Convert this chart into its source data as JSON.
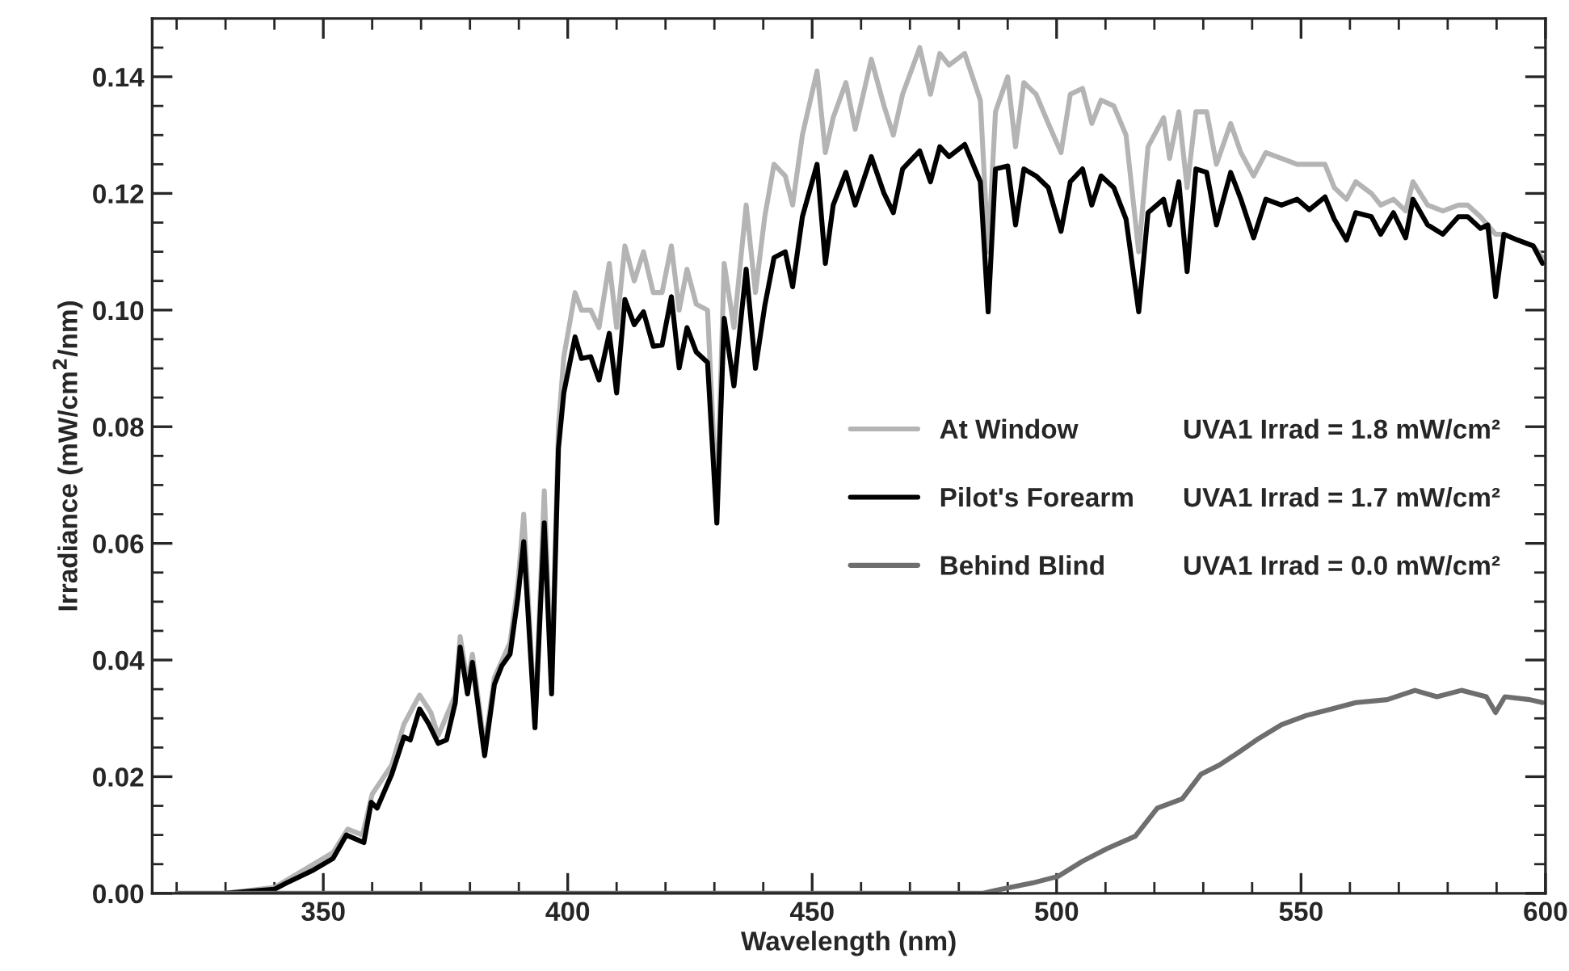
{
  "chart_data": {
    "type": "line",
    "xlabel": "Wavelength (nm)",
    "ylabel": "Irradiance (mW/cm$^{2}$/nm)",
    "xlim": [
      315,
      600
    ],
    "ylim": [
      0,
      0.15
    ],
    "xticks": [
      {
        "value": 320,
        "label": null
      },
      {
        "value": 330,
        "label": null
      },
      {
        "value": 340,
        "label": null
      },
      350,
      {
        "value": 360,
        "label": null
      },
      {
        "value": 370,
        "label": null
      },
      {
        "value": 380,
        "label": null
      },
      {
        "value": 390,
        "label": null
      },
      400,
      {
        "value": 410,
        "label": null
      },
      {
        "value": 420,
        "label": null
      },
      {
        "value": 430,
        "label": null
      },
      {
        "value": 440,
        "label": null
      },
      450,
      {
        "value": 460,
        "label": null
      },
      {
        "value": 470,
        "label": null
      },
      {
        "value": 480,
        "label": null
      },
      {
        "value": 490,
        "label": null
      },
      500,
      {
        "value": 510,
        "label": null
      },
      {
        "value": 520,
        "label": null
      },
      {
        "value": 530,
        "label": null
      },
      {
        "value": 540,
        "label": null
      },
      550,
      {
        "value": 560,
        "label": null
      },
      {
        "value": 570,
        "label": null
      },
      {
        "value": 580,
        "label": null
      },
      {
        "value": 590,
        "label": null
      },
      600
    ],
    "yticks": [
      {
        "value": 0,
        "label": "0.00"
      },
      {
        "value": 0.005,
        "label": null
      },
      {
        "value": 0.01,
        "label": null
      },
      {
        "value": 0.015,
        "label": null
      },
      {
        "value": 0.02,
        "label": "0.02"
      },
      {
        "value": 0.025,
        "label": null
      },
      {
        "value": 0.03,
        "label": null
      },
      {
        "value": 0.035,
        "label": null
      },
      {
        "value": 0.04,
        "label": "0.04"
      },
      {
        "value": 0.045,
        "label": null
      },
      {
        "value": 0.05,
        "label": null
      },
      {
        "value": 0.055,
        "label": null
      },
      {
        "value": 0.06,
        "label": "0.06"
      },
      {
        "value": 0.065,
        "label": null
      },
      {
        "value": 0.07,
        "label": null
      },
      {
        "value": 0.075,
        "label": null
      },
      {
        "value": 0.08,
        "label": "0.08"
      },
      {
        "value": 0.085,
        "label": null
      },
      {
        "value": 0.09,
        "label": null
      },
      {
        "value": 0.095,
        "label": null
      },
      {
        "value": 0.1,
        "label": "0.10"
      },
      {
        "value": 0.105,
        "label": null
      },
      {
        "value": 0.11,
        "label": null
      },
      {
        "value": 0.115,
        "label": null
      },
      {
        "value": 0.12,
        "label": "0.12"
      },
      {
        "value": 0.125,
        "label": null
      },
      {
        "value": 0.13,
        "label": null
      },
      {
        "value": 0.135,
        "label": null
      },
      {
        "value": 0.14,
        "label": "0.14"
      },
      {
        "value": 0.145,
        "label": null
      }
    ],
    "grid": false,
    "legend": "right",
    "line_style": "solid",
    "marker": "none",
    "annotations": [
      "UVA1 Irrad = 1.8 mW/cm²",
      "UVA1 Irrad = 1.7 mW/cm²",
      "UVA1 Irrad = 0.0 mW/cm²"
    ],
    "series": [
      {
        "name": "At Window",
        "color": "#b4b4b4",
        "x": [
          330,
          340,
          352,
          355,
          358,
          360,
          364,
          366.5,
          369.7,
          372,
          373.5,
          377,
          378,
          379.5,
          380.5,
          383,
          385,
          388.2,
          389.8,
          391,
          393.3,
          395.2,
          396.7,
          398.1,
          399.2,
          401.5,
          402.8,
          404.7,
          406.4,
          408.5,
          410,
          411.7,
          413.6,
          415.5,
          417.5,
          419.3,
          421.2,
          422.8,
          424.4,
          426.3,
          428.6,
          430.5,
          432,
          434,
          436.5,
          438.4,
          440.3,
          442.2,
          444.5,
          446,
          448,
          451,
          452.7,
          454.3,
          456.9,
          458.8,
          462.1,
          464.7,
          466.6,
          468.5,
          472,
          474.2,
          476.1,
          478,
          481.2,
          484.4,
          486,
          487.5,
          490,
          491.6,
          493.3,
          495.8,
          498.3,
          500.9,
          502.8,
          505.3,
          507.2,
          509.1,
          511.7,
          514.2,
          516.8,
          518.7,
          521.9,
          523.1,
          525,
          526.7,
          528.5,
          530.7,
          532.7,
          535.6,
          537.7,
          540.3,
          542.8,
          546,
          549.2,
          551.7,
          554.9,
          556.8,
          559.3,
          561.2,
          564.4,
          566.3,
          568.9,
          571.4,
          572.9,
          575.9,
          579,
          582.2,
          584.1,
          586.7,
          589.8,
          591.5,
          594.3,
          597.5,
          599.4
        ],
        "values": [
          0,
          0.001,
          0.007,
          0.011,
          0.01,
          0.017,
          0.022,
          0.029,
          0.034,
          0.031,
          0.027,
          0.034,
          0.044,
          0.036,
          0.041,
          0.025,
          0.037,
          0.043,
          0.053,
          0.065,
          0.029,
          0.069,
          0.036,
          0.08,
          0.092,
          0.103,
          0.1,
          0.1,
          0.097,
          0.108,
          0.097,
          0.111,
          0.105,
          0.11,
          0.103,
          0.103,
          0.111,
          0.1,
          0.107,
          0.101,
          0.1,
          0.066,
          0.108,
          0.097,
          0.118,
          0.103,
          0.116,
          0.125,
          0.123,
          0.118,
          0.13,
          0.141,
          0.127,
          0.133,
          0.139,
          0.131,
          0.143,
          0.135,
          0.13,
          0.137,
          0.145,
          0.137,
          0.144,
          0.142,
          0.144,
          0.136,
          0.11,
          0.134,
          0.14,
          0.128,
          0.139,
          0.137,
          0.132,
          0.127,
          0.137,
          0.138,
          0.132,
          0.136,
          0.135,
          0.13,
          0.11,
          0.128,
          0.133,
          0.126,
          0.134,
          0.121,
          0.134,
          0.134,
          0.125,
          0.132,
          0.127,
          0.123,
          0.127,
          0.126,
          0.125,
          0.125,
          0.125,
          0.121,
          0.119,
          0.122,
          0.12,
          0.118,
          0.119,
          0.117,
          0.122,
          0.118,
          0.117,
          0.118,
          0.118,
          0.116,
          0.113,
          0.113,
          0.112,
          0.111,
          0.109
        ]
      },
      {
        "name": "Pilot's Forearm",
        "color": "#000000",
        "x": [
          330,
          340,
          343,
          348,
          352,
          354.7,
          358.3,
          359.8,
          361,
          364,
          366.5,
          367.8,
          369.7,
          371.6,
          373.5,
          375.2,
          377,
          378,
          379.5,
          380.5,
          383,
          385,
          386.5,
          388.2,
          389.8,
          391,
          393.3,
          395.2,
          396.7,
          398.1,
          399.2,
          401.5,
          402.8,
          404.7,
          406.4,
          408.5,
          410,
          411.7,
          413.6,
          415.5,
          417.5,
          419.3,
          421.2,
          422.8,
          424.4,
          426.3,
          428.6,
          430.5,
          432,
          434,
          436.5,
          438.4,
          440.3,
          442.2,
          444.5,
          446,
          448,
          451,
          452.7,
          454.3,
          456.9,
          458.8,
          462.1,
          464.7,
          466.6,
          468.5,
          472,
          474.2,
          476.1,
          478,
          481.2,
          484.4,
          486,
          487.5,
          490,
          491.6,
          493.3,
          495.8,
          498.3,
          500.9,
          502.8,
          505.3,
          507.2,
          509.1,
          511.7,
          514.2,
          516.8,
          518.7,
          521.9,
          523.1,
          525,
          526.7,
          528.5,
          530.7,
          532.7,
          535.6,
          537.7,
          540.3,
          542.8,
          546,
          549.2,
          551.7,
          554.9,
          556.8,
          559.3,
          561.2,
          564.4,
          566.3,
          568.9,
          571.4,
          572.9,
          575.9,
          579,
          582.2,
          584.1,
          586.7,
          588.2,
          589.8,
          591.5,
          594.3,
          597.5,
          599.4
        ],
        "values": [
          0,
          0.0007,
          0.002,
          0.004,
          0.006,
          0.01,
          0.0087,
          0.0156,
          0.0146,
          0.0204,
          0.0268,
          0.0263,
          0.0316,
          0.029,
          0.0257,
          0.0263,
          0.0327,
          0.0422,
          0.0342,
          0.0396,
          0.0236,
          0.0358,
          0.039,
          0.041,
          0.0507,
          0.0603,
          0.0284,
          0.0635,
          0.0342,
          0.0763,
          0.0858,
          0.0954,
          0.0917,
          0.092,
          0.088,
          0.096,
          0.0858,
          0.1018,
          0.0975,
          0.0997,
          0.0938,
          0.094,
          0.1023,
          0.0901,
          0.097,
          0.0928,
          0.091,
          0.0635,
          0.0986,
          0.087,
          0.107,
          0.09,
          0.1007,
          0.109,
          0.11,
          0.104,
          0.116,
          0.125,
          0.108,
          0.118,
          0.1236,
          0.118,
          0.1263,
          0.12,
          0.1167,
          0.1242,
          0.1273,
          0.122,
          0.128,
          0.1263,
          0.1284,
          0.122,
          0.0997,
          0.1242,
          0.1247,
          0.1146,
          0.1242,
          0.123,
          0.121,
          0.1135,
          0.122,
          0.1242,
          0.118,
          0.123,
          0.121,
          0.1156,
          0.0997,
          0.1167,
          0.119,
          0.1146,
          0.122,
          0.1066,
          0.1242,
          0.1236,
          0.1146,
          0.1236,
          0.119,
          0.1124,
          0.119,
          0.118,
          0.119,
          0.1172,
          0.1194,
          0.1156,
          0.112,
          0.1167,
          0.116,
          0.113,
          0.1167,
          0.1124,
          0.119,
          0.1146,
          0.113,
          0.116,
          0.116,
          0.114,
          0.1146,
          0.1023,
          0.113,
          0.112,
          0.111,
          0.108
        ]
      },
      {
        "name": "Behind Blind",
        "color": "#6e6e6e",
        "x": [
          320,
          485,
          487.5,
          495.2,
          500.3,
          505.3,
          510.4,
          516.1,
          520.6,
          525.7,
          529.5,
          533.3,
          537.1,
          540.9,
          546,
          551.1,
          556.2,
          561.2,
          567.6,
          573.3,
          577.8,
          582.8,
          587.9,
          589.8,
          591.7,
          596.8,
          599.4
        ],
        "values": [
          0,
          0,
          0.0005,
          0.0018,
          0.0029,
          0.0055,
          0.0077,
          0.0098,
          0.0146,
          0.0162,
          0.0204,
          0.022,
          0.0241,
          0.0263,
          0.0289,
          0.0305,
          0.0316,
          0.0327,
          0.0332,
          0.0348,
          0.0337,
          0.0348,
          0.0337,
          0.031,
          0.0337,
          0.0332,
          0.0327
        ]
      }
    ]
  }
}
